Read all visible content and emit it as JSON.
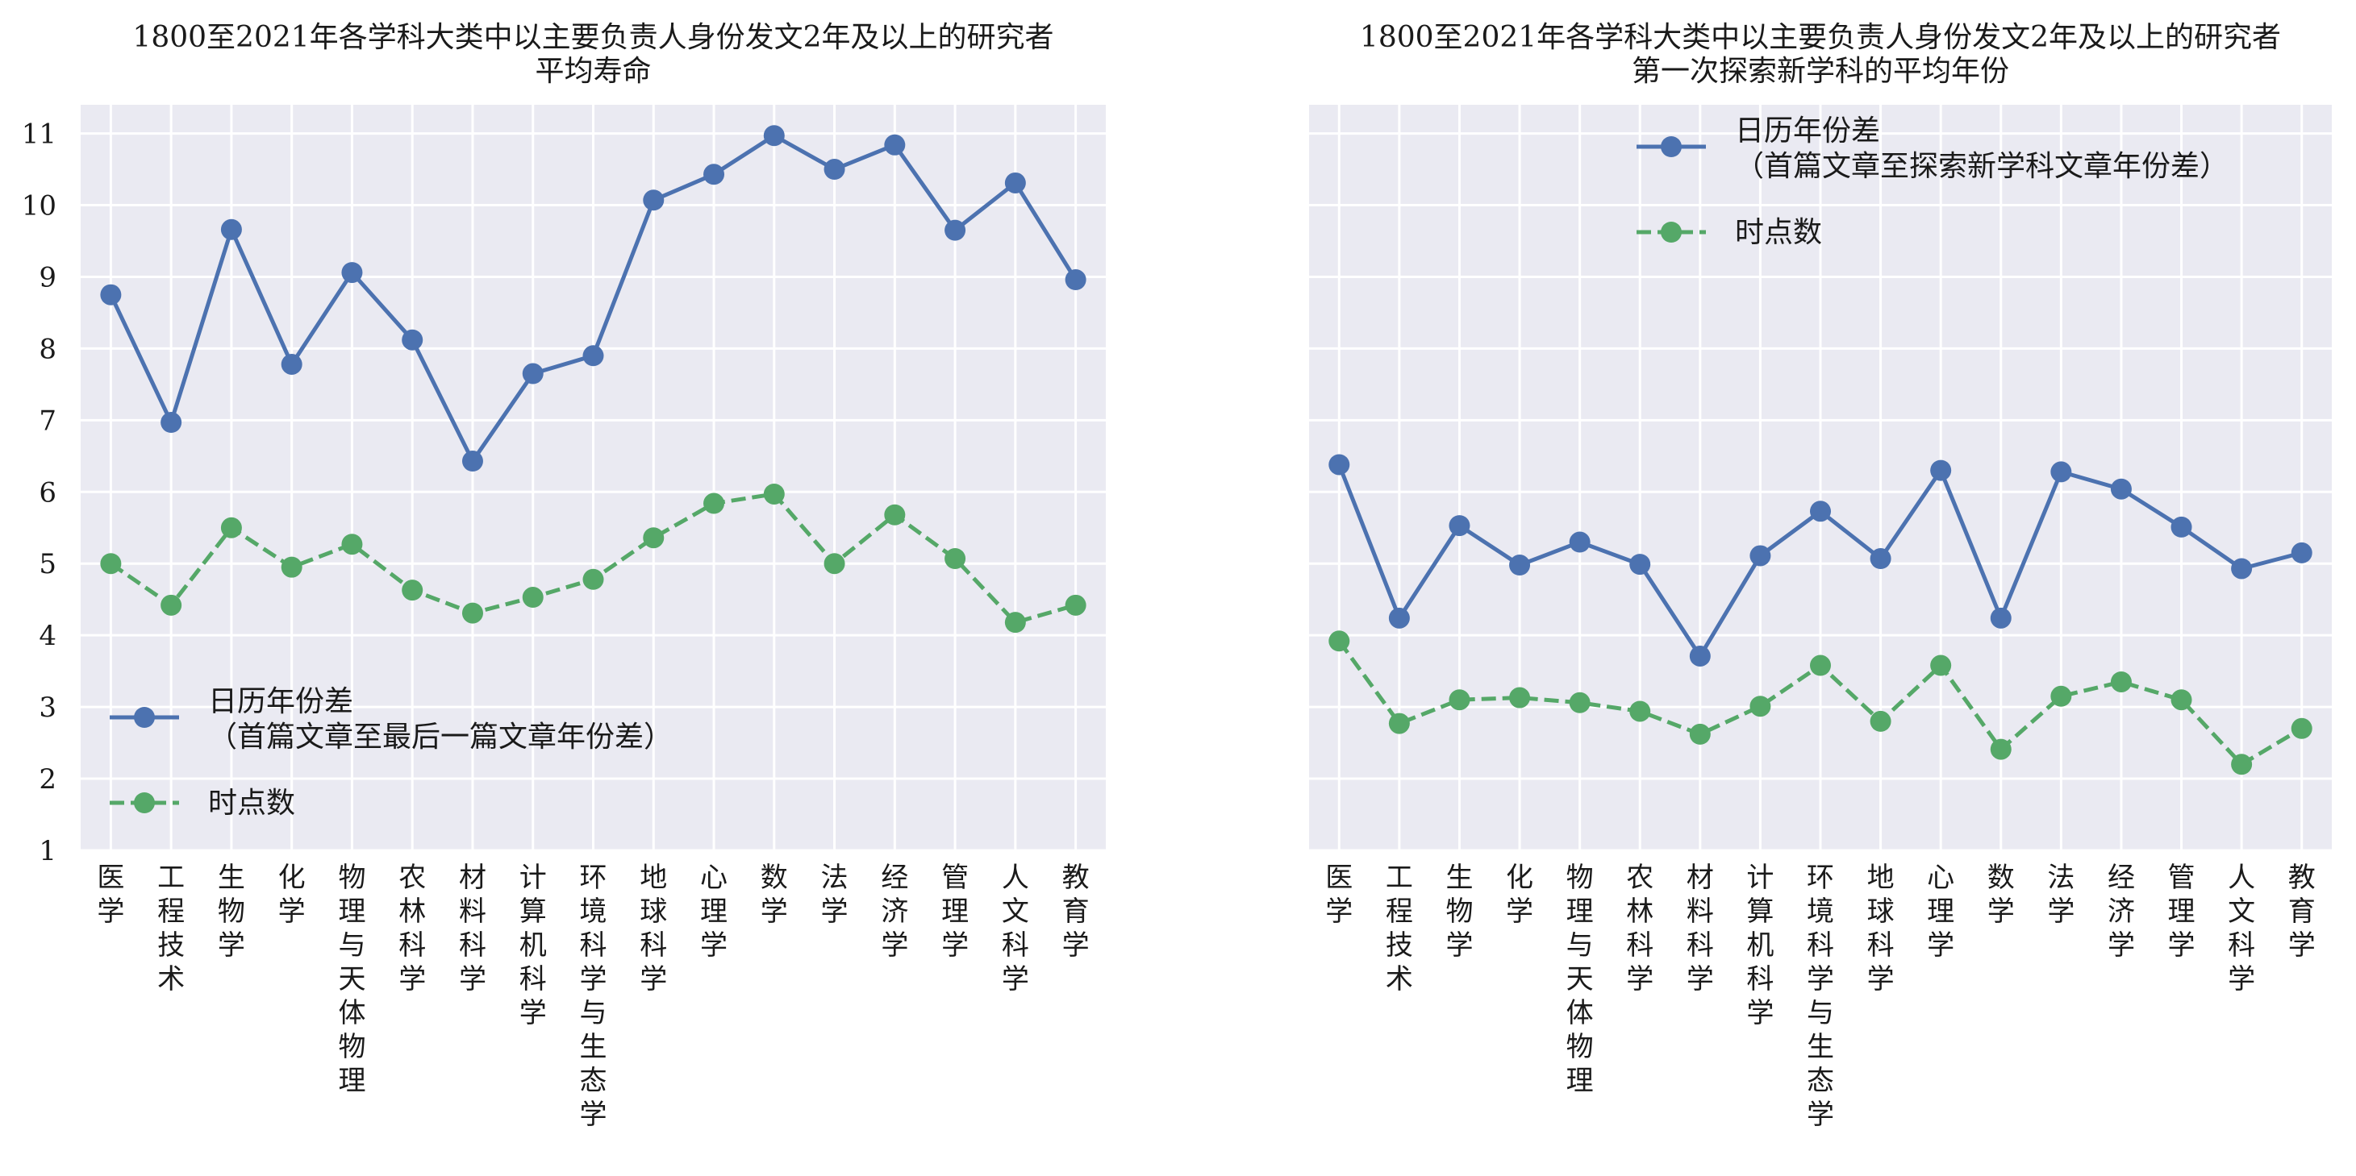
{
  "chart_data": [
    {
      "type": "line",
      "title": "1800至2021年各学科大类中以主要负责人身份发文2年及以上的研究者\n平均寿命",
      "xlabel": "",
      "ylabel": "",
      "categories": [
        "医学",
        "工程技术",
        "生物学",
        "化学",
        "物理与天体物理",
        "农林科学",
        "材料科学",
        "计算机科学",
        "环境科学与生态学",
        "地球科学",
        "心理学",
        "数学",
        "法学",
        "经济学",
        "管理学",
        "人文科学",
        "教育学"
      ],
      "ylim": [
        1,
        11.4
      ],
      "yticks": [
        1,
        2,
        3,
        4,
        5,
        6,
        7,
        8,
        9,
        10,
        11
      ],
      "grid": true,
      "legend_position": "lower-left",
      "series": [
        {
          "name": "日历年份差\n（首篇文章至最后一篇文章年份差）",
          "color": "#4c72b0",
          "style": "solid",
          "values": [
            8.75,
            6.97,
            9.66,
            7.78,
            9.06,
            8.12,
            6.43,
            7.65,
            7.9,
            10.07,
            10.43,
            10.97,
            10.5,
            10.84,
            9.65,
            10.31,
            8.96
          ]
        },
        {
          "name": "时点数",
          "color": "#55a868",
          "style": "dashed",
          "values": [
            5.0,
            4.42,
            5.5,
            4.95,
            5.27,
            4.63,
            4.31,
            4.53,
            4.78,
            5.36,
            5.84,
            5.97,
            5.0,
            5.68,
            5.07,
            4.18,
            4.42
          ]
        }
      ]
    },
    {
      "type": "line",
      "title": "1800至2021年各学科大类中以主要负责人身份发文2年及以上的研究者\n第一次探索新学科的平均年份",
      "xlabel": "",
      "ylabel": "",
      "categories": [
        "医学",
        "工程技术",
        "生物学",
        "化学",
        "物理与天体物理",
        "农林科学",
        "材料科学",
        "计算机科学",
        "环境科学与生态学",
        "地球科学",
        "心理学",
        "数学",
        "法学",
        "经济学",
        "管理学",
        "人文科学",
        "教育学"
      ],
      "ylim": [
        1,
        11.4
      ],
      "yticks": [
        1,
        2,
        3,
        4,
        5,
        6,
        7,
        8,
        9,
        10,
        11
      ],
      "show_ytick_labels": false,
      "grid": true,
      "legend_position": "upper-center",
      "series": [
        {
          "name": "日历年份差\n（首篇文章至探索新学科文章年份差）",
          "color": "#4c72b0",
          "style": "solid",
          "values": [
            6.38,
            4.24,
            5.53,
            4.98,
            5.3,
            4.99,
            3.71,
            5.11,
            5.73,
            5.07,
            6.3,
            4.24,
            6.28,
            6.04,
            5.51,
            4.93,
            5.15
          ]
        },
        {
          "name": "时点数",
          "color": "#55a868",
          "style": "dashed",
          "values": [
            3.92,
            2.77,
            3.1,
            3.13,
            3.06,
            2.94,
            2.62,
            3.01,
            3.58,
            2.8,
            3.58,
            2.41,
            3.15,
            3.35,
            3.1,
            2.2,
            2.7
          ]
        }
      ]
    }
  ]
}
